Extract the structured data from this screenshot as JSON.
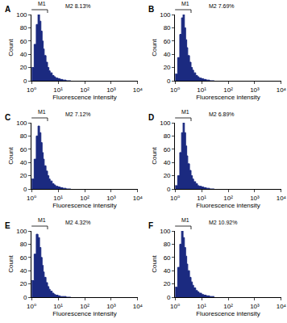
{
  "chart_data": [
    {
      "type": "histogram",
      "panel": "A",
      "color": "#1b2a80",
      "log": "x",
      "xlabel": "Fluorescence intensity",
      "ylabel": "Count",
      "xlim": [
        1,
        10000
      ],
      "ylim": [
        0,
        100
      ],
      "xticks": [
        {
          "value": 1,
          "label": "10⁰"
        },
        {
          "value": 10,
          "label": "10¹"
        },
        {
          "value": 100,
          "label": "10²"
        },
        {
          "value": 1000,
          "label": "10³"
        },
        {
          "value": 10000,
          "label": "10⁴"
        }
      ],
      "yticks": [
        0,
        20,
        40,
        60,
        80,
        100
      ],
      "bins": [
        1,
        1.25,
        1.5,
        1.75,
        2,
        2.25,
        2.5,
        2.75,
        3,
        3.5,
        4,
        4.5,
        5,
        6,
        7,
        8,
        10,
        12,
        15,
        20,
        30
      ],
      "values": [
        20,
        55,
        85,
        100,
        90,
        75,
        60,
        48,
        38,
        28,
        20,
        15,
        12,
        8,
        6,
        4,
        3,
        2,
        1,
        0
      ],
      "gates": [
        {
          "label": "M1",
          "range": [
            1,
            8
          ]
        },
        {
          "label": "M2 8.13%",
          "range": [
            8,
            10000
          ]
        }
      ]
    },
    {
      "type": "histogram",
      "panel": "B",
      "color": "#1b2a80",
      "log": "x",
      "xlabel": "Fluorescence intensity",
      "ylabel": "Count",
      "xlim": [
        1,
        10000
      ],
      "ylim": [
        0,
        100
      ],
      "xticks": [
        {
          "value": 1,
          "label": "10⁰"
        },
        {
          "value": 10,
          "label": "10¹"
        },
        {
          "value": 100,
          "label": "10²"
        },
        {
          "value": 1000,
          "label": "10³"
        },
        {
          "value": 10000,
          "label": "10⁴"
        }
      ],
      "yticks": [
        0,
        20,
        40,
        60,
        80,
        100
      ],
      "bins": [
        1,
        1.25,
        1.5,
        1.75,
        2,
        2.25,
        2.5,
        2.75,
        3,
        3.5,
        4,
        4.5,
        5,
        6,
        7,
        8,
        10,
        12,
        15,
        20,
        30
      ],
      "values": [
        10,
        35,
        70,
        95,
        100,
        80,
        62,
        50,
        38,
        28,
        20,
        16,
        12,
        8,
        6,
        4,
        3,
        2,
        1,
        0
      ],
      "gates": [
        {
          "label": "M1",
          "range": [
            1,
            8
          ]
        },
        {
          "label": "M2 7.69%",
          "range": [
            8,
            10000
          ]
        }
      ]
    },
    {
      "type": "histogram",
      "panel": "C",
      "color": "#1b2a80",
      "log": "x",
      "xlabel": "Fluorescence intensity",
      "ylabel": "Count",
      "xlim": [
        1,
        10000
      ],
      "ylim": [
        0,
        100
      ],
      "xticks": [
        {
          "value": 1,
          "label": "10⁰"
        },
        {
          "value": 10,
          "label": "10¹"
        },
        {
          "value": 100,
          "label": "10²"
        },
        {
          "value": 1000,
          "label": "10³"
        },
        {
          "value": 10000,
          "label": "10⁴"
        }
      ],
      "yticks": [
        0,
        20,
        40,
        60,
        80,
        100
      ],
      "bins": [
        1,
        1.25,
        1.5,
        1.75,
        2,
        2.25,
        2.5,
        2.75,
        3,
        3.5,
        4,
        4.5,
        5,
        6,
        7,
        8,
        10,
        12,
        15,
        20,
        30
      ],
      "values": [
        15,
        45,
        80,
        95,
        85,
        70,
        55,
        45,
        35,
        27,
        20,
        15,
        12,
        8,
        6,
        4,
        3,
        2,
        1,
        0
      ],
      "gates": [
        {
          "label": "M1",
          "range": [
            1,
            8
          ]
        },
        {
          "label": "M2 7.12%",
          "range": [
            8,
            10000
          ]
        }
      ]
    },
    {
      "type": "histogram",
      "panel": "D",
      "color": "#1b2a80",
      "log": "x",
      "xlabel": "Fluorescence intensity",
      "ylabel": "Count",
      "xlim": [
        1,
        10000
      ],
      "ylim": [
        0,
        100
      ],
      "xticks": [
        {
          "value": 1,
          "label": "10⁰"
        },
        {
          "value": 10,
          "label": "10¹"
        },
        {
          "value": 100,
          "label": "10²"
        },
        {
          "value": 1000,
          "label": "10³"
        },
        {
          "value": 10000,
          "label": "10⁴"
        }
      ],
      "yticks": [
        0,
        20,
        40,
        60,
        80,
        100
      ],
      "bins": [
        1,
        1.25,
        1.5,
        1.75,
        2,
        2.25,
        2.5,
        2.75,
        3,
        3.5,
        4,
        4.5,
        5,
        6,
        7,
        8,
        10,
        12,
        15,
        20,
        30
      ],
      "values": [
        5,
        20,
        55,
        85,
        100,
        85,
        65,
        50,
        38,
        28,
        20,
        15,
        11,
        8,
        5,
        4,
        3,
        2,
        1,
        0
      ],
      "gates": [
        {
          "label": "M1",
          "range": [
            1,
            8
          ]
        },
        {
          "label": "M2 6.89%",
          "range": [
            8,
            10000
          ]
        }
      ]
    },
    {
      "type": "histogram",
      "panel": "E",
      "color": "#1b2a80",
      "log": "x",
      "xlabel": "Fluorescence intensity",
      "ylabel": "Count",
      "xlim": [
        1,
        10000
      ],
      "ylim": [
        0,
        100
      ],
      "xticks": [
        {
          "value": 1,
          "label": "10⁰"
        },
        {
          "value": 10,
          "label": "10¹"
        },
        {
          "value": 100,
          "label": "10²"
        },
        {
          "value": 1000,
          "label": "10³"
        },
        {
          "value": 10000,
          "label": "10⁴"
        }
      ],
      "yticks": [
        0,
        20,
        40,
        60,
        80,
        100
      ],
      "bins": [
        1,
        1.25,
        1.5,
        1.75,
        2,
        2.25,
        2.5,
        2.75,
        3,
        3.5,
        4,
        4.5,
        5,
        6,
        7,
        8,
        10,
        12,
        15,
        20,
        30
      ],
      "values": [
        25,
        65,
        95,
        90,
        75,
        60,
        48,
        38,
        30,
        22,
        16,
        12,
        9,
        6,
        4,
        3,
        2,
        1,
        1,
        0
      ],
      "gates": [
        {
          "label": "M1",
          "range": [
            1,
            8
          ]
        },
        {
          "label": "M2 4.32%",
          "range": [
            8,
            10000
          ]
        }
      ]
    },
    {
      "type": "histogram",
      "panel": "F",
      "color": "#1b2a80",
      "log": "x",
      "xlabel": "Fluorescence intensity",
      "ylabel": "Count",
      "xlim": [
        1,
        10000
      ],
      "ylim": [
        0,
        100
      ],
      "xticks": [
        {
          "value": 1,
          "label": "10⁰"
        },
        {
          "value": 10,
          "label": "10¹"
        },
        {
          "value": 100,
          "label": "10²"
        },
        {
          "value": 1000,
          "label": "10³"
        },
        {
          "value": 10000,
          "label": "10⁴"
        }
      ],
      "yticks": [
        0,
        20,
        40,
        60,
        80,
        100
      ],
      "bins": [
        1,
        1.25,
        1.5,
        1.75,
        2,
        2.25,
        2.5,
        2.75,
        3,
        3.5,
        4,
        4.5,
        5,
        6,
        7,
        8,
        10,
        12,
        15,
        20,
        30
      ],
      "values": [
        15,
        45,
        80,
        100,
        90,
        75,
        62,
        50,
        40,
        30,
        23,
        18,
        14,
        10,
        8,
        6,
        4,
        3,
        2,
        1
      ],
      "gates": [
        {
          "label": "M1",
          "range": [
            1,
            8
          ]
        },
        {
          "label": "M2 10.92%",
          "range": [
            8,
            10000
          ]
        }
      ]
    }
  ]
}
